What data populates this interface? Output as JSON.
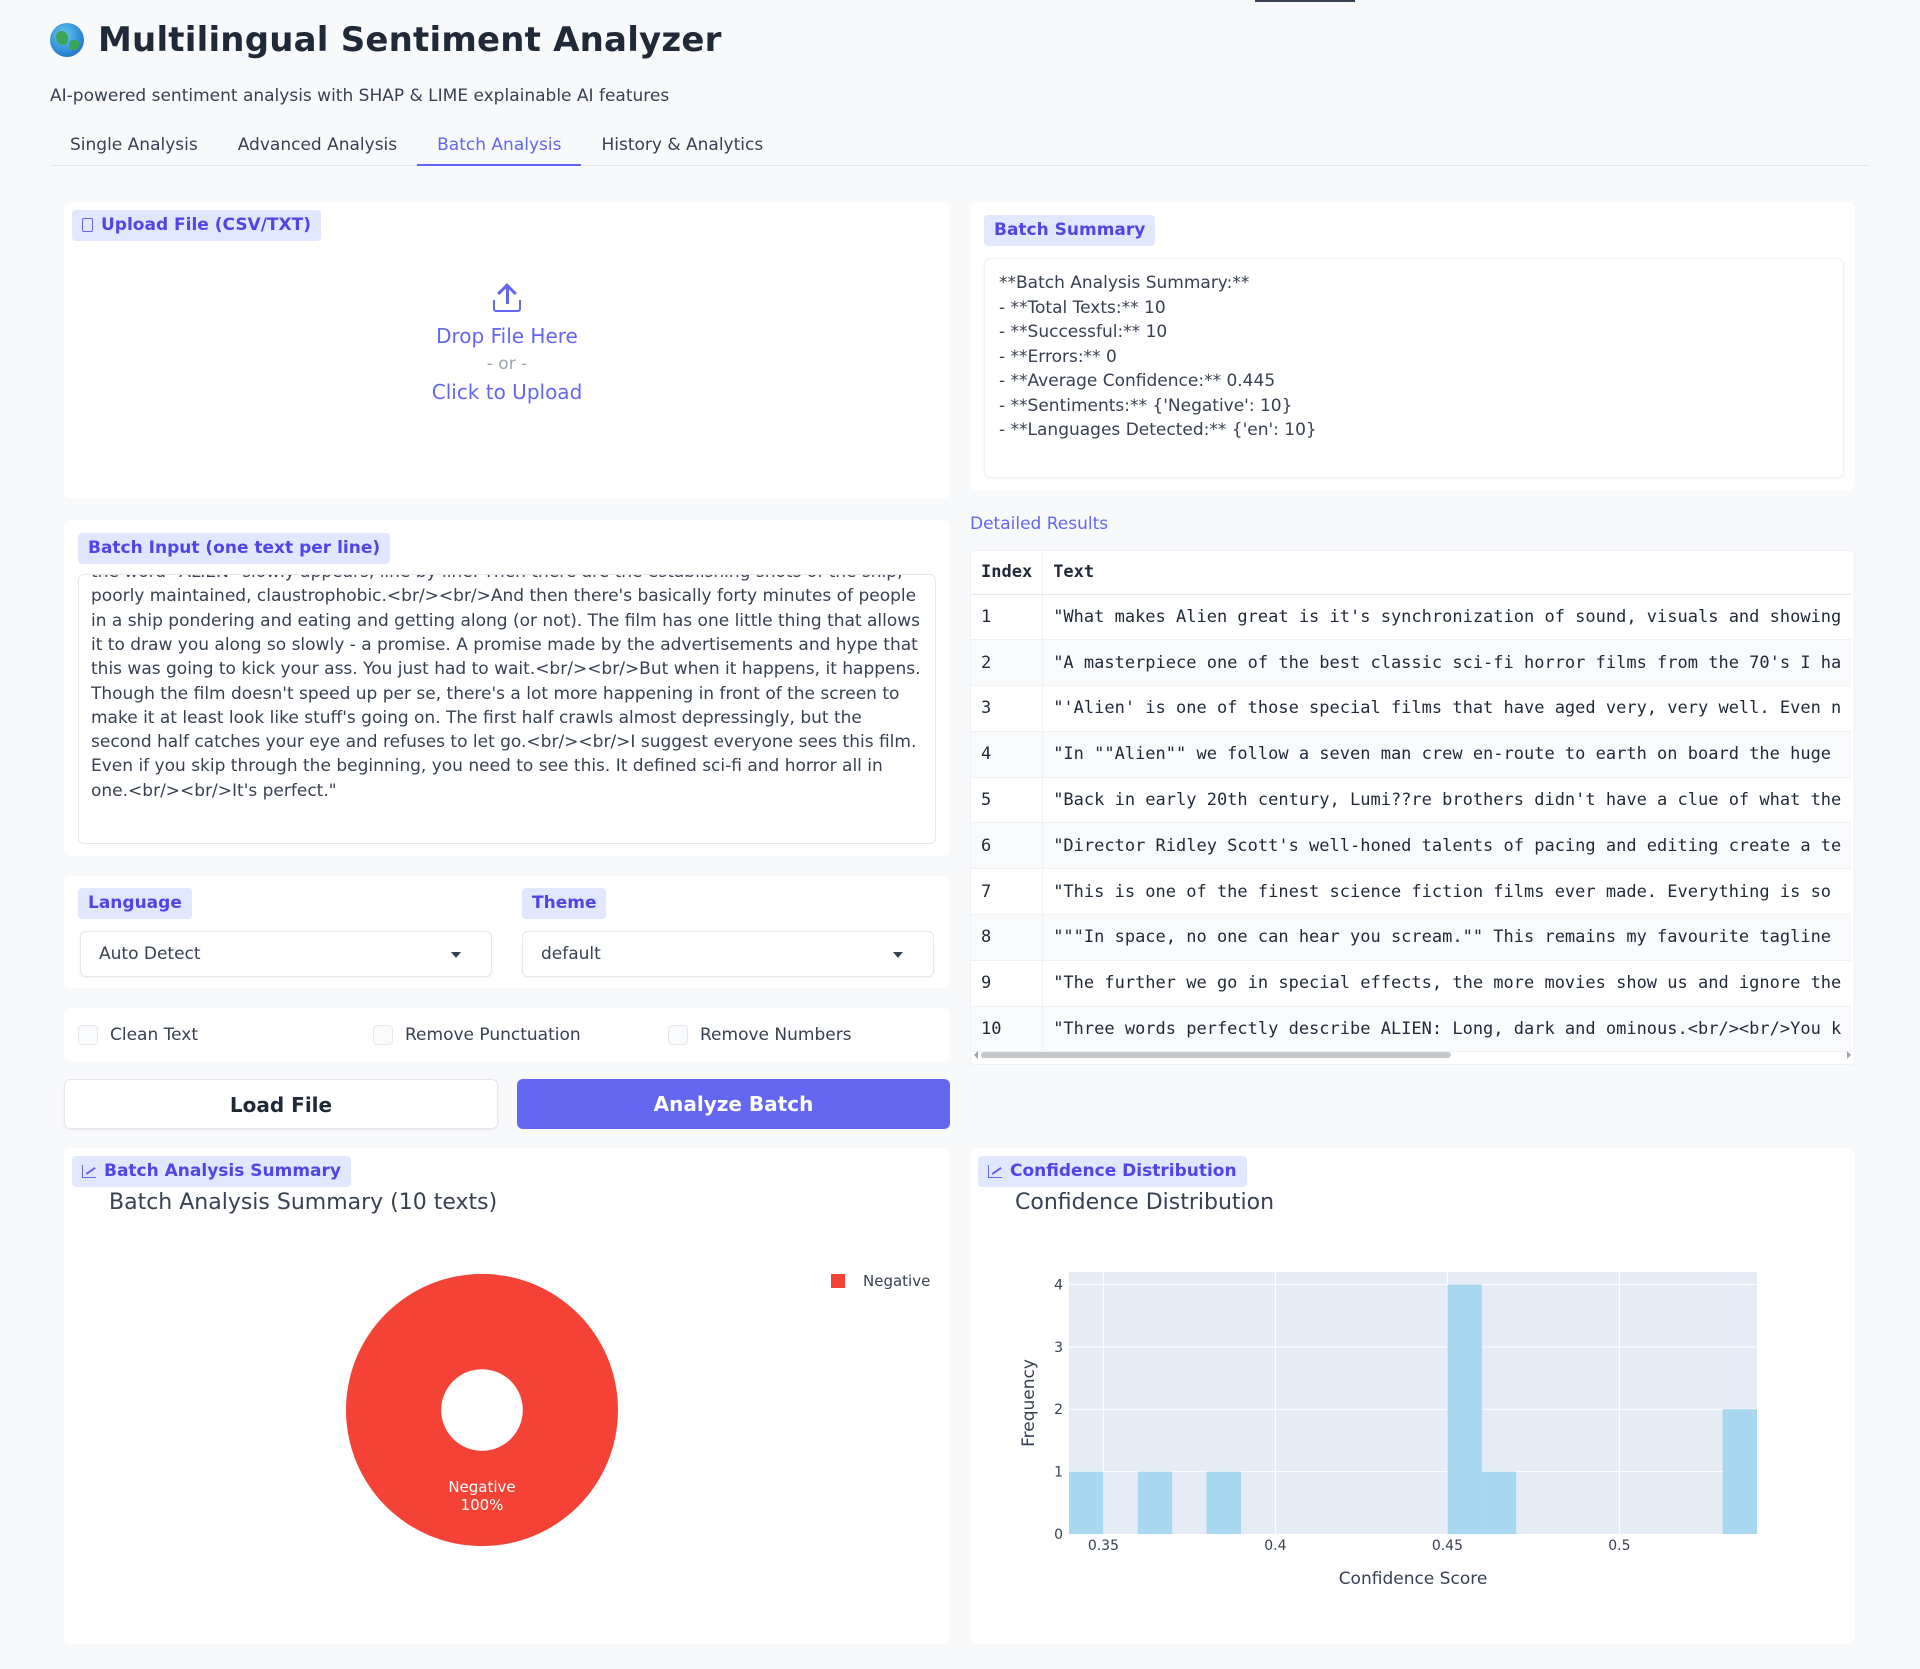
{
  "app": {
    "title": "Multilingual Sentiment Analyzer",
    "subtitle": "AI-powered sentiment analysis with SHAP & LIME explainable AI features"
  },
  "tabs": [
    {
      "label": "Single Analysis",
      "active": false
    },
    {
      "label": "Advanced Analysis",
      "active": false
    },
    {
      "label": "Batch Analysis",
      "active": true
    },
    {
      "label": "History & Analytics",
      "active": false
    }
  ],
  "upload": {
    "label": "Upload File (CSV/TXT)",
    "drop_text": "Drop File Here",
    "or_text": "- or -",
    "click_text": "Click to Upload"
  },
  "batch_input": {
    "label": "Batch Input (one text per line)",
    "value": "the word \"ALIEN\" slowly appears, line by line. Then there are the establishing shots of the ship, poorly maintained, claustrophobic.<br/><br/>And then there's basically forty minutes of people in a ship pondering and eating and getting along (or not). The film has one little thing that allows it to draw you along so slowly - a promise. A promise made by the advertisements and hype that this was going to kick your ass. You just had to wait.<br/><br/>But when it happens, it happens. Though the film doesn't speed up per se, there's a lot more happening in front of the screen to make it at least look like stuff's going on. The first half crawls almost depressingly, but the second half catches your eye and refuses to let go.<br/><br/>I suggest everyone sees this film. Even if you skip through the beginning, you need to see this. It defined sci-fi and horror all in one.<br/><br/>It's perfect.\""
  },
  "language": {
    "label": "Language",
    "value": "Auto Detect"
  },
  "theme": {
    "label": "Theme",
    "value": "default"
  },
  "options": [
    {
      "label": "Clean Text",
      "checked": false
    },
    {
      "label": "Remove Punctuation",
      "checked": false
    },
    {
      "label": "Remove Numbers",
      "checked": false
    }
  ],
  "buttons": {
    "load": "Load File",
    "analyze": "Analyze Batch"
  },
  "batch_summary": {
    "label": "Batch Summary",
    "lines": [
      "**Batch Analysis Summary:**",
      "- **Total Texts:** 10",
      "- **Successful:** 10",
      "- **Errors:** 0",
      "- **Average Confidence:** 0.445",
      "- **Sentiments:** {'Negative': 10}",
      "- **Languages Detected:** {'en': 10}"
    ]
  },
  "results": {
    "label": "Detailed Results",
    "columns": [
      "Index",
      "Text"
    ],
    "rows": [
      {
        "index": "1",
        "text": "\"What makes Alien great is it's synchronization of sound, visuals and showing"
      },
      {
        "index": "2",
        "text": "\"A masterpiece one of the best classic sci-fi horror films from the 70's I ha"
      },
      {
        "index": "3",
        "text": "\"'Alien' is one of those special films that have aged very, very well. Even n"
      },
      {
        "index": "4",
        "text": "\"In \"\"Alien\"\" we follow a seven man crew en-route to earth on board the huge"
      },
      {
        "index": "5",
        "text": "\"Back in early 20th century, Lumi??re brothers didn't have a clue of what the"
      },
      {
        "index": "6",
        "text": "\"Director Ridley Scott's well-honed talents of pacing and editing create a te"
      },
      {
        "index": "7",
        "text": "\"This is one of the finest science fiction films ever made. Everything is so"
      },
      {
        "index": "8",
        "text": "\"\"\"In space, no one can hear you scream.\"\" This remains my favourite tagline"
      },
      {
        "index": "9",
        "text": "\"The further we go in special effects, the more movies show us and ignore the"
      },
      {
        "index": "10",
        "text": "\"Three words perfectly describe ALIEN: Long, dark and ominous.<br/><br/>You k"
      }
    ]
  },
  "pie_panel": {
    "label": "Batch Analysis Summary"
  },
  "hist_panel": {
    "label": "Confidence Distribution"
  },
  "chart_data": [
    {
      "type": "pie",
      "title": "Batch Analysis Summary (10 texts)",
      "hole": 0.3,
      "legend_position": "top-right",
      "slices": [
        {
          "label": "Negative",
          "value": 10,
          "percent_label": "100%",
          "color": "#f44336"
        }
      ]
    },
    {
      "type": "bar",
      "title": "Confidence Distribution",
      "xlabel": "Confidence Score",
      "ylabel": "Frequency",
      "xlim": [
        0.34,
        0.54
      ],
      "ylim": [
        0,
        4.2
      ],
      "x_ticks": [
        0.35,
        0.4,
        0.45,
        0.5
      ],
      "x_tick_labels": [
        "0.35",
        "0.4",
        "0.45",
        "0.5"
      ],
      "y_ticks": [
        0,
        1,
        2,
        3,
        4
      ],
      "bin_width": 0.01,
      "color": "#a8d8ef",
      "bins": [
        {
          "start": 0.34,
          "count": 1
        },
        {
          "start": 0.36,
          "count": 1
        },
        {
          "start": 0.38,
          "count": 1
        },
        {
          "start": 0.45,
          "count": 4
        },
        {
          "start": 0.46,
          "count": 1
        },
        {
          "start": 0.53,
          "count": 2
        }
      ]
    }
  ]
}
